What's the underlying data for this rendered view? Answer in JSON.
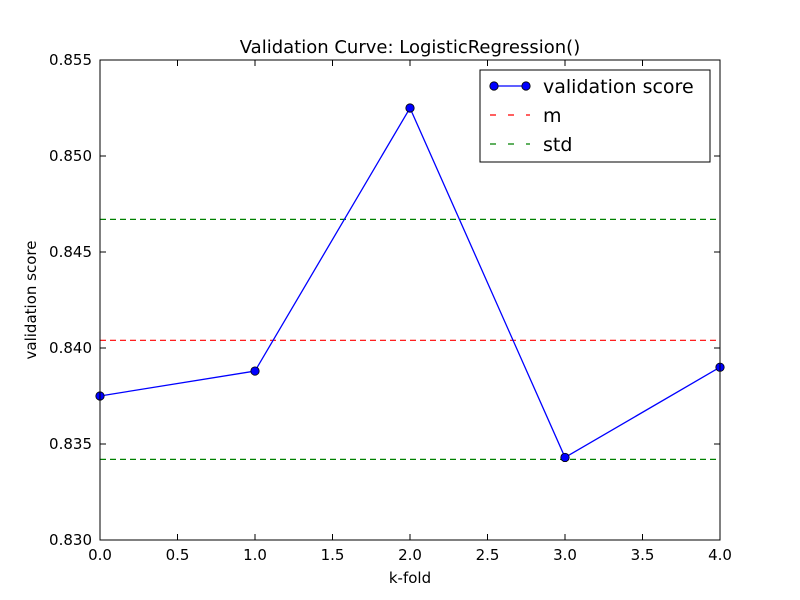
{
  "chart_data": {
    "type": "line",
    "title": "Validation Curve: LogisticRegression()",
    "xlabel": "k-fold",
    "ylabel": "validation score",
    "xlim": [
      0.0,
      4.0
    ],
    "ylim": [
      0.83,
      0.855
    ],
    "xticks": [
      "0.0",
      "0.5",
      "1.0",
      "1.5",
      "2.0",
      "2.5",
      "3.0",
      "3.5",
      "4.0"
    ],
    "yticks": [
      "0.830",
      "0.835",
      "0.840",
      "0.845",
      "0.850",
      "0.855"
    ],
    "grid": false,
    "legend_position": "top-right",
    "series": [
      {
        "name": "validation score",
        "style": "line-marker",
        "color": "#0000ff",
        "x": [
          0,
          1,
          2,
          3,
          4
        ],
        "y": [
          0.8375,
          0.8388,
          0.8525,
          0.8343,
          0.839
        ]
      },
      {
        "name": "m",
        "style": "dashed",
        "color": "#ff0000",
        "y_constant": 0.8404
      },
      {
        "name": "std",
        "style": "dashed",
        "color": "#008000",
        "y_constant": [
          0.8342,
          0.8467
        ]
      }
    ]
  }
}
